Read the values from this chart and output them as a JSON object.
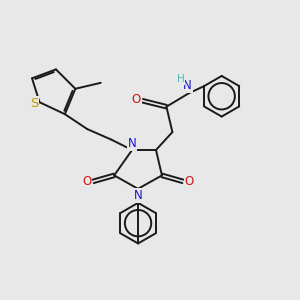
{
  "background_color": "#e8e8e8",
  "bond_color": "#1a1a1a",
  "N_color": "#1515cc",
  "O_color": "#cc1515",
  "S_color": "#b8a000",
  "H_color": "#4db8b8",
  "line_width": 1.4,
  "font_size": 8.5,
  "fig_size": [
    3.0,
    3.0
  ],
  "dpi": 100,
  "xlim": [
    0.0,
    10.0
  ],
  "ylim": [
    0.5,
    10.5
  ]
}
